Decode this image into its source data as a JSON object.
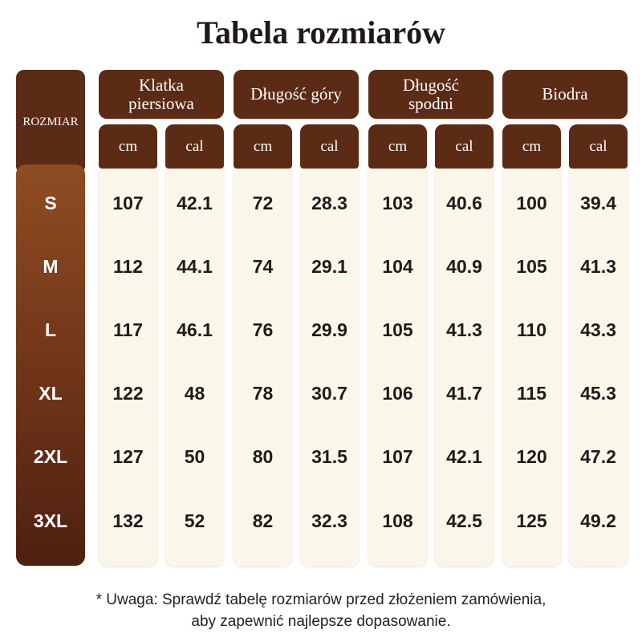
{
  "header": {
    "title": "Tabela rozmiarów"
  },
  "table": {
    "row_header": "ROZMIAR",
    "groups": [
      {
        "name": "Klatka piersiowa",
        "units": [
          "cm",
          "cal"
        ]
      },
      {
        "name": "Długość góry",
        "units": [
          "cm",
          "cal"
        ]
      },
      {
        "name": "Długość spodni",
        "units": [
          "cm",
          "cal"
        ]
      },
      {
        "name": "Biodra",
        "units": [
          "cm",
          "cal"
        ]
      }
    ],
    "sizes": [
      "S",
      "M",
      "L",
      "XL",
      "2XL",
      "3XL"
    ],
    "rows": [
      [
        "107",
        "42.1",
        "72",
        "28.3",
        "103",
        "40.6",
        "100",
        "39.4"
      ],
      [
        "112",
        "44.1",
        "74",
        "29.1",
        "104",
        "40.9",
        "105",
        "41.3"
      ],
      [
        "117",
        "46.1",
        "76",
        "29.9",
        "105",
        "41.3",
        "110",
        "43.3"
      ],
      [
        "122",
        "48",
        "78",
        "30.7",
        "106",
        "41.7",
        "115",
        "45.3"
      ],
      [
        "127",
        "50",
        "80",
        "31.5",
        "107",
        "42.1",
        "120",
        "47.2"
      ],
      [
        "132",
        "52",
        "82",
        "32.3",
        "108",
        "42.5",
        "125",
        "49.2"
      ]
    ]
  },
  "note": {
    "lines": [
      "* Uwaga: Sprawdź tabelę rozmiarów przed złożeniem zamówienia,",
      "aby zapewnić najlepsze dopasowanie."
    ]
  }
}
